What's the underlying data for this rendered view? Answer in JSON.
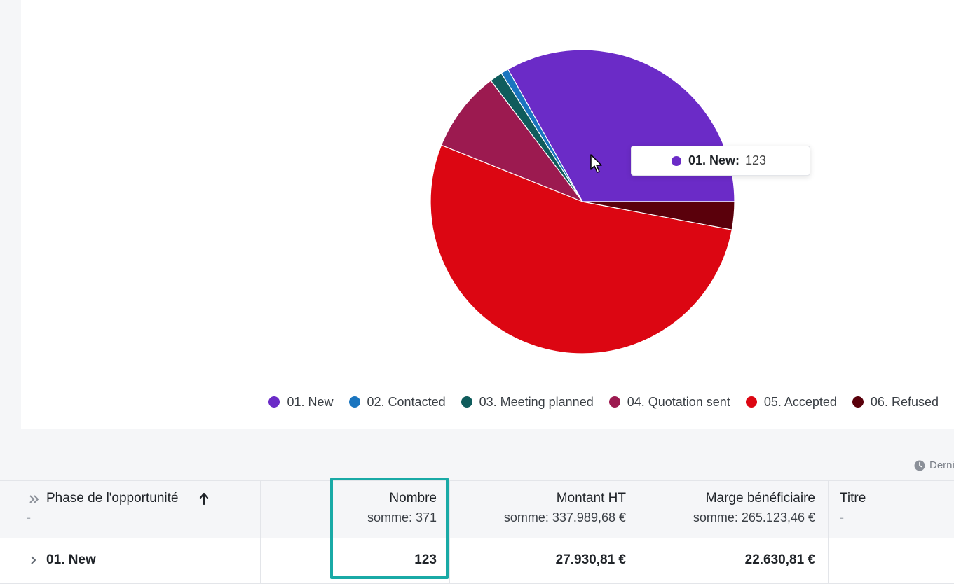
{
  "chart_data": {
    "type": "pie",
    "slices": [
      {
        "label": "01. New",
        "value": 123,
        "color": "#6b2bc7"
      },
      {
        "label": "02. Contacted",
        "value": 3,
        "color": "#1a75bf"
      },
      {
        "label": "03. Meeting planned",
        "value": 5,
        "color": "#0f5c5c"
      },
      {
        "label": "04. Quotation sent",
        "value": 32,
        "color": "#9c1a50"
      },
      {
        "label": "05. Accepted",
        "value": 197,
        "color": "#dc0612"
      },
      {
        "label": "06. Refused",
        "value": 11,
        "color": "#5a000b"
      }
    ],
    "legend_position": "bottom-right"
  },
  "tooltip": {
    "label": "01. New:",
    "value": "123",
    "color": "#6b2bc7"
  },
  "last_update": "Derni",
  "table": {
    "columns": [
      {
        "title": "Phase de l'opportunité",
        "sub": "-"
      },
      {
        "title": "Nombre",
        "sub": "somme: 371"
      },
      {
        "title": "Montant HT",
        "sub": "somme: 337.989,68 €"
      },
      {
        "title": "Marge bénéficiaire",
        "sub": "somme: 265.123,46 €"
      },
      {
        "title": "Titre",
        "sub": "-"
      }
    ],
    "rows": [
      {
        "phase": "01. New",
        "nombre": "123",
        "montant": "27.930,81 €",
        "marge": "22.630,81 €",
        "titre": ""
      }
    ]
  },
  "colors": {
    "highlight": "#19aaa6"
  },
  "icons": [
    "expand-all-icon",
    "sort-up-arrow-icon",
    "chevron-right-icon",
    "clock-icon",
    "mouse-cursor-icon"
  ]
}
